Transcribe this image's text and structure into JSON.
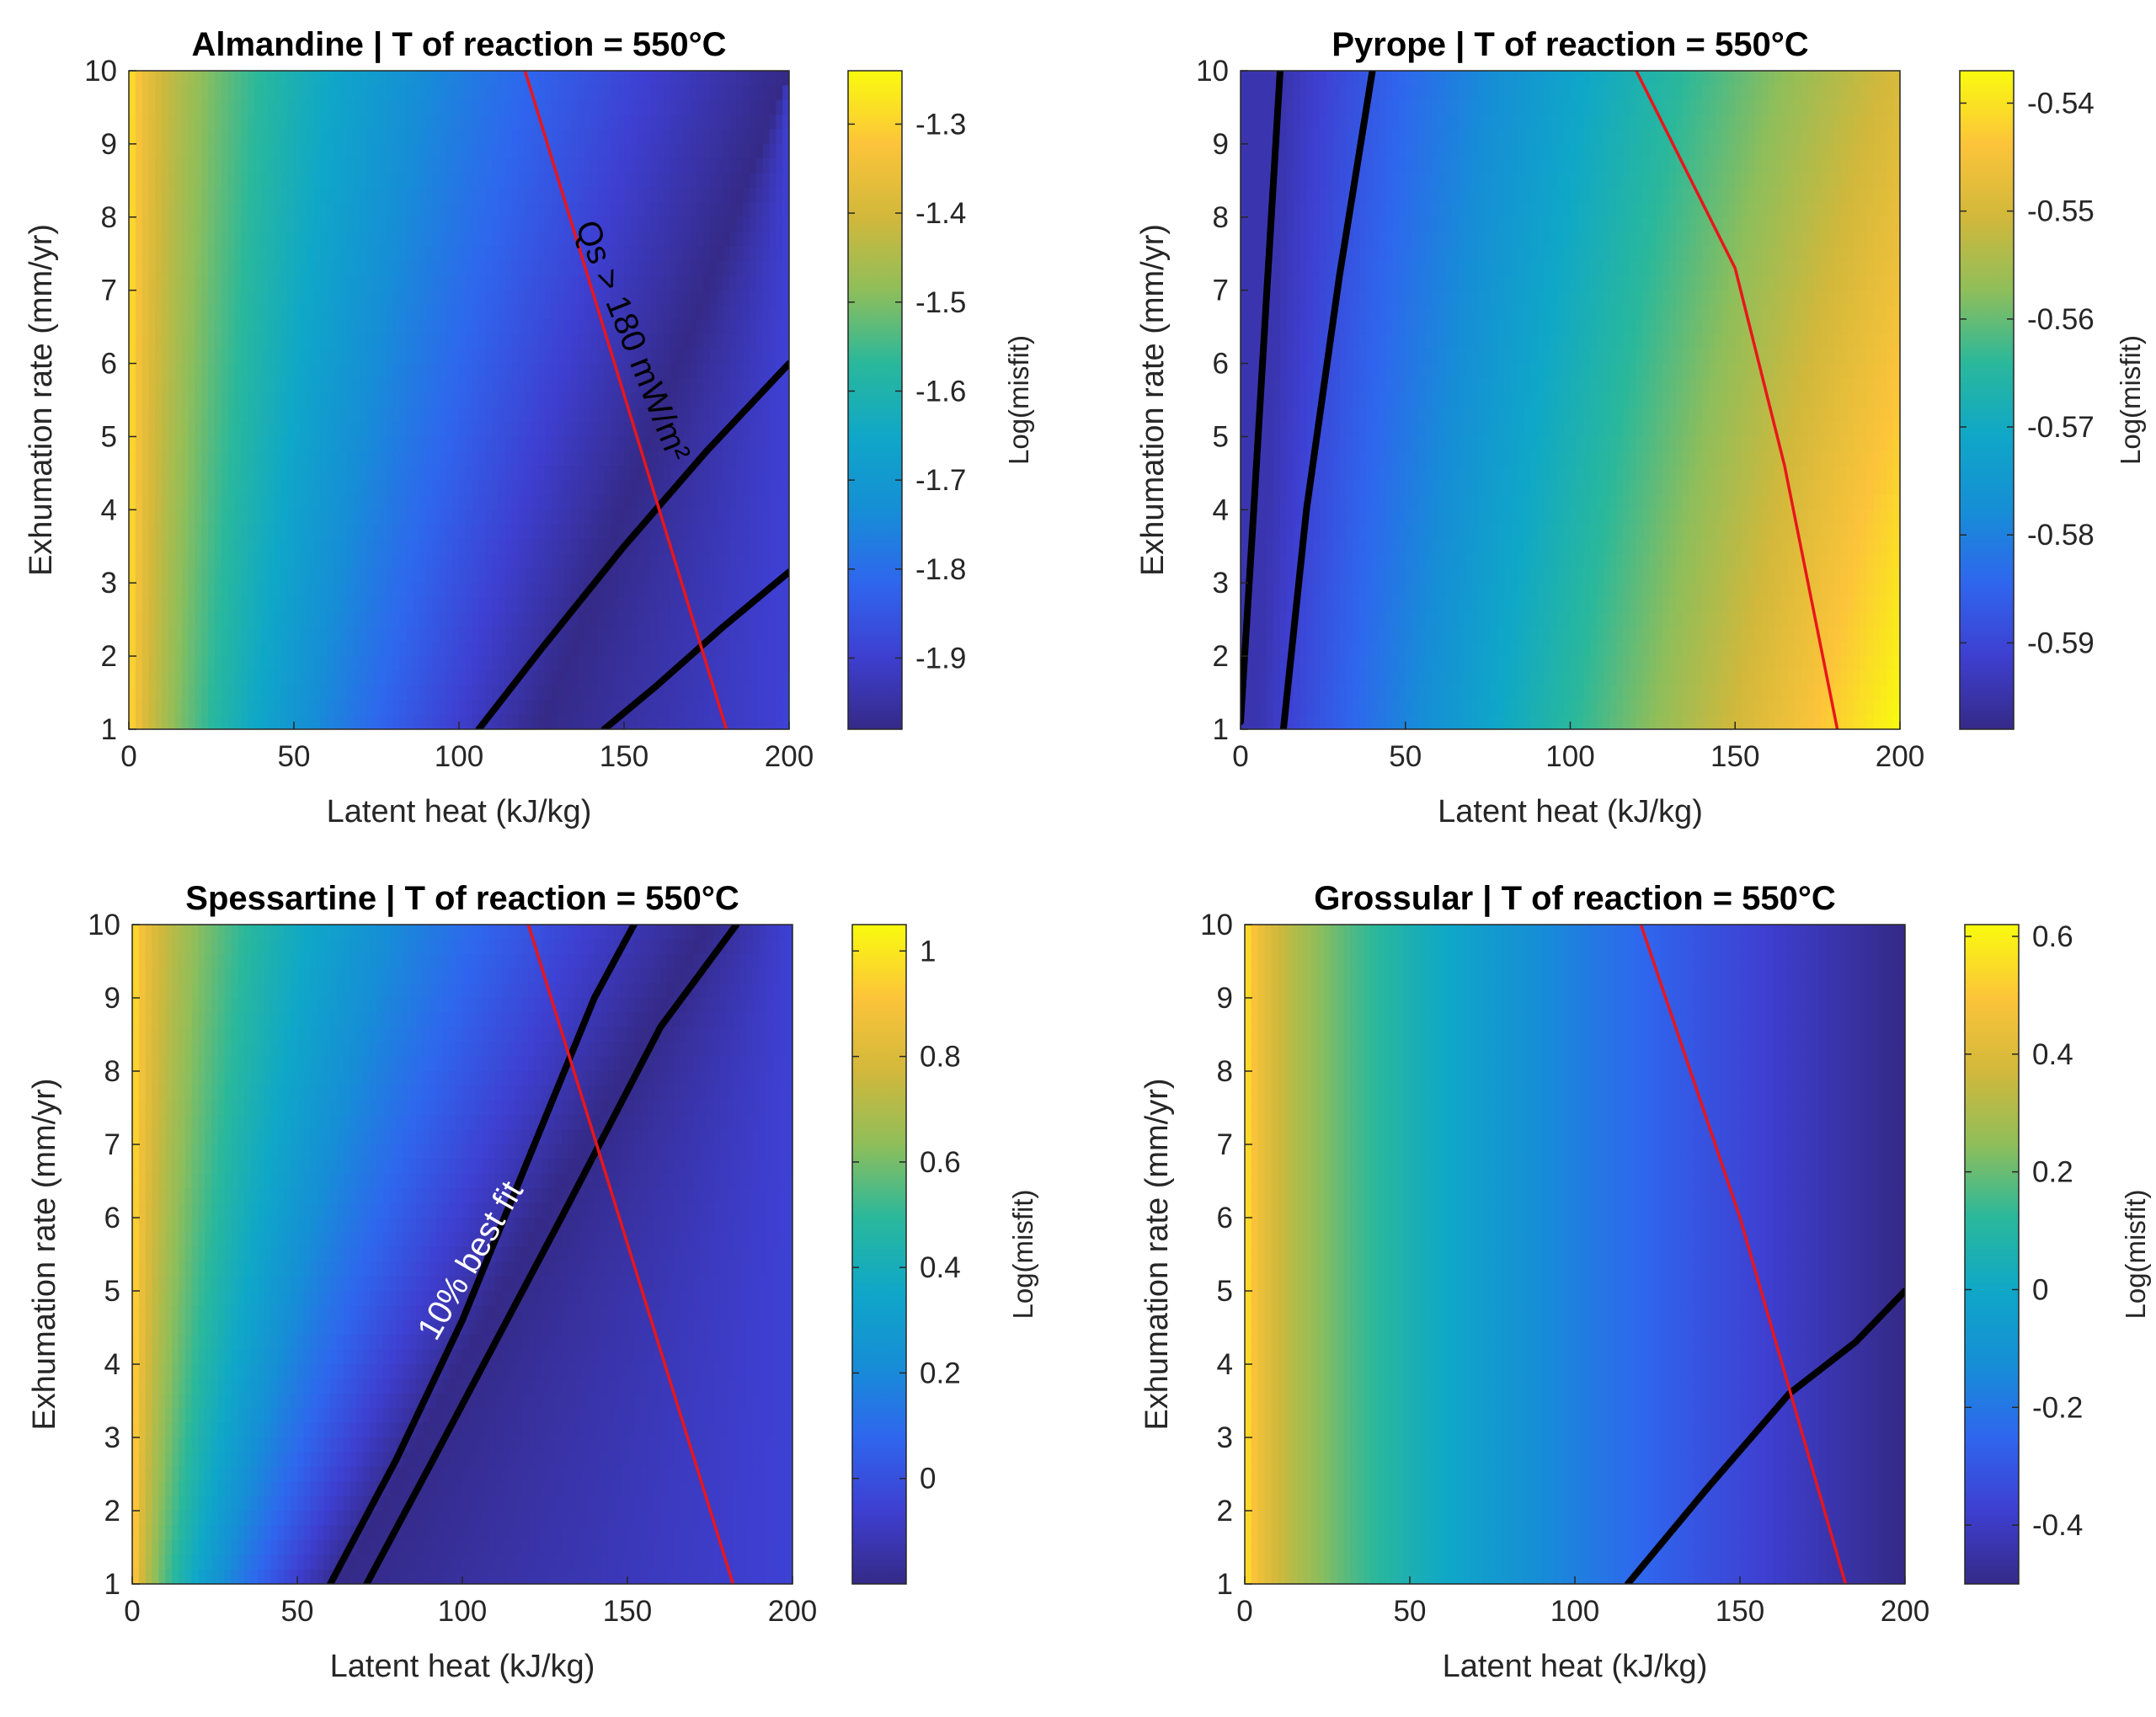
{
  "chart_data": [
    {
      "type": "heatmap",
      "title": "Almandine | T of reaction = 550°C",
      "xlabel": "Latent heat (kJ/kg)",
      "ylabel": "Exhumation rate (mm/yr)",
      "xlim": [
        0,
        200
      ],
      "ylim": [
        1,
        10
      ],
      "x_ticks": [
        "0",
        "50",
        "100",
        "150",
        "200"
      ],
      "y_ticks": [
        "1",
        "2",
        "3",
        "4",
        "5",
        "6",
        "7",
        "8",
        "9",
        "10"
      ],
      "colorbar": {
        "label": "Log(misfit)",
        "range": [
          -1.98,
          -1.24
        ],
        "ticks": [
          -1.3,
          -1.4,
          -1.5,
          -1.6,
          -1.7,
          -1.8,
          -1.9
        ],
        "tick_labels": [
          "-1.3",
          "-1.4",
          "-1.5",
          "-1.6",
          "-1.7",
          "-1.8",
          "-1.9"
        ]
      },
      "field": {
        "min_x_at_y1": 125,
        "min_x_at_y10": 200
      },
      "contours_black": [
        {
          "x": [
            106,
            125,
            150,
            175,
            200
          ],
          "y": [
            1.0,
            2.1,
            3.5,
            4.8,
            6.0
          ]
        },
        {
          "x": [
            144,
            160,
            180,
            200
          ],
          "y": [
            1.0,
            1.6,
            2.4,
            3.15
          ]
        }
      ],
      "boundary_red": {
        "x": [
          120,
          181
        ],
        "y": [
          10,
          1
        ]
      },
      "annotation": {
        "text": "Qs > 180 mW/m²",
        "x": 152,
        "y": 6.3,
        "rotation": 68.3,
        "color": "#000000"
      }
    },
    {
      "type": "heatmap",
      "title": "Pyrope | T of reaction = 550°C",
      "xlabel": "Latent heat (kJ/kg)",
      "ylabel": "Exhumation rate (mm/yr)",
      "xlim": [
        0,
        200
      ],
      "ylim": [
        1,
        10
      ],
      "x_ticks": [
        "0",
        "50",
        "100",
        "150",
        "200"
      ],
      "y_ticks": [
        "1",
        "2",
        "3",
        "4",
        "5",
        "6",
        "7",
        "8",
        "9",
        "10"
      ],
      "colorbar": {
        "label": "Log(misfit)",
        "range": [
          -0.598,
          -0.537
        ],
        "ticks": [
          -0.54,
          -0.55,
          -0.56,
          -0.57,
          -0.58,
          -0.59
        ],
        "tick_labels": [
          "-0.54",
          "-0.55",
          "-0.56",
          "-0.57",
          "-0.58",
          "-0.59"
        ]
      },
      "field": {
        "min_x_at_y1": 6,
        "min_x_at_y10": 14,
        "max_x_at_y1": 200,
        "max_x_at_y10": 200
      },
      "contours_black": [
        {
          "x": [
            0,
            4,
            8,
            12
          ],
          "y": [
            1.1,
            4.0,
            7.0,
            10.0
          ]
        },
        {
          "x": [
            13,
            20,
            30,
            40
          ],
          "y": [
            1.0,
            4.0,
            7.2,
            10.0
          ]
        }
      ],
      "boundary_red": {
        "x": [
          120,
          150,
          165,
          181
        ],
        "y": [
          10,
          7.3,
          4.6,
          1
        ]
      }
    },
    {
      "type": "heatmap",
      "title": "Spessartine | T of reaction = 550°C",
      "xlabel": "Latent heat (kJ/kg)",
      "ylabel": "Exhumation rate (mm/yr)",
      "xlim": [
        0,
        200
      ],
      "ylim": [
        1,
        10
      ],
      "x_ticks": [
        "0",
        "50",
        "100",
        "150",
        "200"
      ],
      "y_ticks": [
        "1",
        "2",
        "3",
        "4",
        "5",
        "6",
        "7",
        "8",
        "9",
        "10"
      ],
      "colorbar": {
        "label": "Log(misfit)",
        "range": [
          -0.2,
          1.05
        ],
        "ticks": [
          1.0,
          0.8,
          0.6,
          0.4,
          0.2,
          0.0
        ],
        "tick_labels": [
          "1",
          "0.8",
          "0.6",
          "0.4",
          "0.2",
          "0"
        ]
      },
      "field": {
        "min_x_at_y1": 62,
        "min_x_at_y10": 175
      },
      "contours_black": [
        {
          "x": [
            60,
            80,
            100,
            120,
            140,
            152
          ],
          "y": [
            1.0,
            2.7,
            4.6,
            6.8,
            9.0,
            10.0
          ]
        },
        {
          "x": [
            71,
            90,
            110,
            130,
            160,
            183
          ],
          "y": [
            1.0,
            2.6,
            4.3,
            6.0,
            8.6,
            10.0
          ]
        }
      ],
      "boundary_red": {
        "x": [
          120,
          182
        ],
        "y": [
          10,
          1
        ]
      },
      "annotation": {
        "text": "10% best fit",
        "x": 103,
        "y": 5.4,
        "rotation": -60,
        "color": "#ffffff"
      }
    },
    {
      "type": "heatmap",
      "title": "Grossular | T of reaction = 550°C",
      "xlabel": "Latent heat (kJ/kg)",
      "ylabel": "Exhumation rate (mm/yr)",
      "xlim": [
        0,
        200
      ],
      "ylim": [
        1,
        10
      ],
      "x_ticks": [
        "0",
        "50",
        "100",
        "150",
        "200"
      ],
      "y_ticks": [
        "1",
        "2",
        "3",
        "4",
        "5",
        "6",
        "7",
        "8",
        "9",
        "10"
      ],
      "colorbar": {
        "label": "Log(misfit)",
        "range": [
          -0.5,
          0.62
        ],
        "ticks": [
          0.6,
          0.4,
          0.2,
          0.0,
          -0.2,
          -0.4
        ],
        "tick_labels": [
          "0.6",
          "0.4",
          "0.2",
          "0",
          "-0.2",
          "-0.4"
        ]
      },
      "field": {
        "min_x_at_y1": 200,
        "min_x_at_y10": 200
      },
      "contours_black": [
        {
          "x": [
            116,
            140,
            165,
            185,
            200
          ],
          "y": [
            1.0,
            2.3,
            3.6,
            4.3,
            5.0
          ]
        }
      ],
      "boundary_red": {
        "x": [
          120,
          150,
          182
        ],
        "y": [
          10,
          6.0,
          1
        ]
      }
    }
  ]
}
